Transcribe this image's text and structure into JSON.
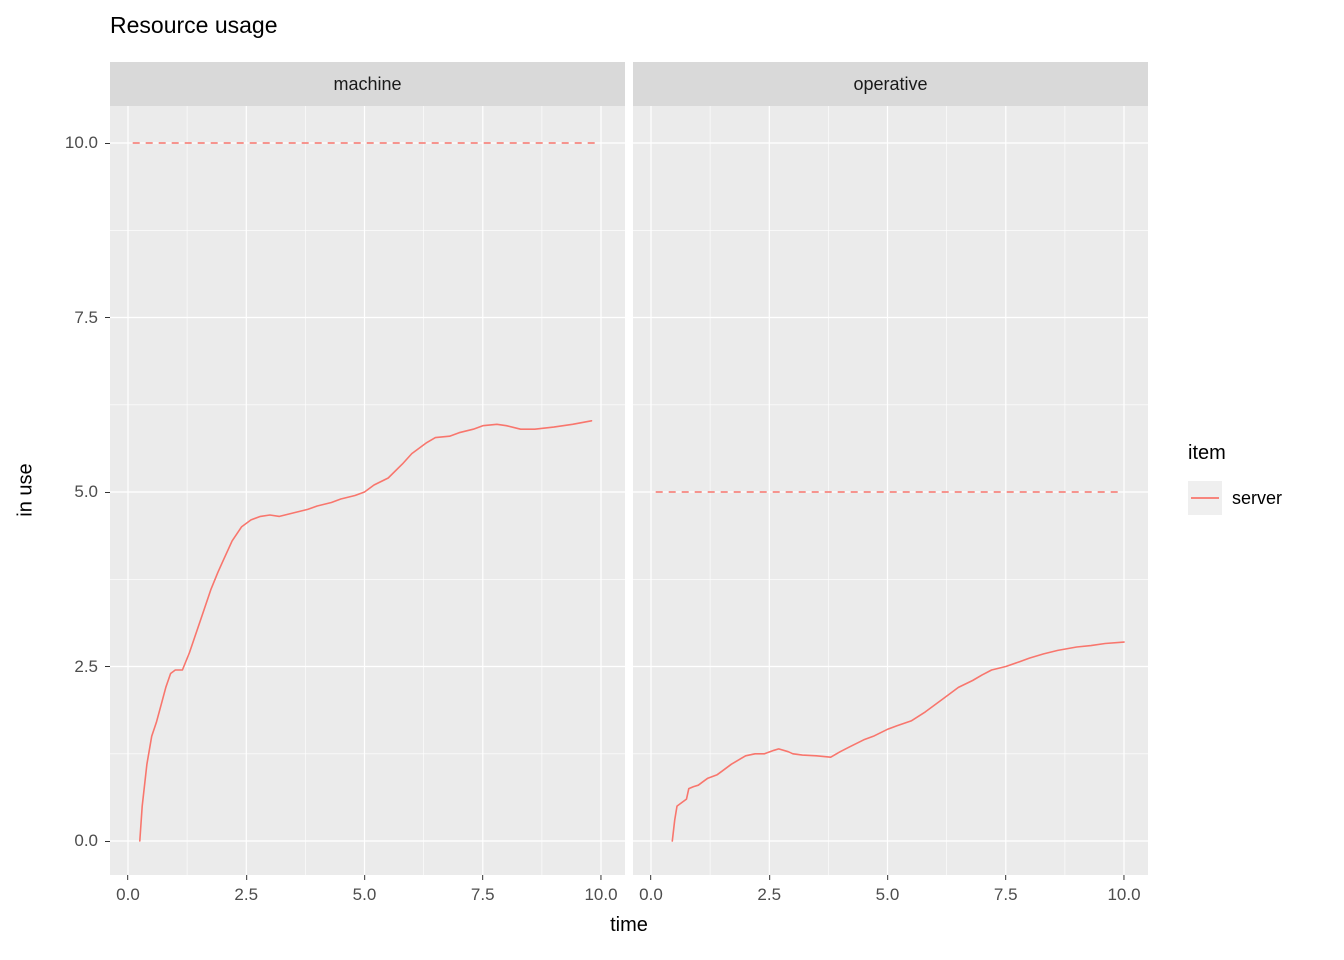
{
  "chart_data": {
    "type": "line",
    "title": "Resource usage",
    "xlabel": "time",
    "ylabel": "in use",
    "xlim": [
      0,
      10
    ],
    "ylim": [
      0,
      10
    ],
    "grid": true,
    "x_ticks": [
      0,
      2.5,
      5,
      7.5,
      10
    ],
    "x_tick_labels": [
      "0.0",
      "2.5",
      "5.0",
      "7.5",
      "10.0"
    ],
    "y_ticks": [
      0,
      2.5,
      5,
      7.5,
      10
    ],
    "y_tick_labels": [
      "0.0",
      "2.5",
      "5.0",
      "7.5",
      "10.0"
    ],
    "legend": {
      "title": "item",
      "position": "right",
      "entries": [
        {
          "label": "server",
          "color": "#F8766D"
        }
      ]
    },
    "colors": {
      "panel_bg": "#EBEBEB",
      "strip_bg": "#D9D9D9",
      "grid": "#FFFFFF",
      "series": "#F8766D",
      "axis_text": "#4D4D4D",
      "legend_key_bg": "#EFEFEF"
    },
    "facets": [
      {
        "label": "machine",
        "capacity_line": {
          "y": 10,
          "style": "dashed",
          "x_start": 0.1,
          "x_end": 9.9
        },
        "series": [
          {
            "name": "server",
            "x": [
              0.25,
              0.3,
              0.4,
              0.5,
              0.6,
              0.7,
              0.8,
              0.9,
              1.0,
              1.15,
              1.3,
              1.45,
              1.6,
              1.75,
              1.9,
              2.0,
              2.2,
              2.4,
              2.6,
              2.8,
              3.0,
              3.2,
              3.5,
              3.8,
              4.0,
              4.3,
              4.5,
              4.8,
              5.0,
              5.2,
              5.5,
              5.8,
              6.0,
              6.3,
              6.5,
              6.8,
              7.0,
              7.3,
              7.5,
              7.8,
              8.0,
              8.3,
              8.6,
              9.0,
              9.4,
              9.8
            ],
            "y": [
              0,
              0.5,
              1.1,
              1.5,
              1.7,
              1.95,
              2.2,
              2.4,
              2.45,
              2.45,
              2.7,
              3.0,
              3.3,
              3.6,
              3.85,
              4.0,
              4.3,
              4.5,
              4.6,
              4.65,
              4.67,
              4.65,
              4.7,
              4.75,
              4.8,
              4.85,
              4.9,
              4.95,
              5.0,
              5.1,
              5.2,
              5.4,
              5.55,
              5.7,
              5.78,
              5.8,
              5.85,
              5.9,
              5.95,
              5.97,
              5.95,
              5.9,
              5.9,
              5.93,
              5.97,
              6.02
            ]
          }
        ]
      },
      {
        "label": "operative",
        "capacity_line": {
          "y": 5,
          "style": "dashed",
          "x_start": 0.1,
          "x_end": 9.9
        },
        "series": [
          {
            "name": "server",
            "x": [
              0.45,
              0.5,
              0.55,
              0.65,
              0.75,
              0.8,
              0.9,
              1.0,
              1.1,
              1.2,
              1.4,
              1.5,
              1.7,
              1.9,
              2.0,
              2.2,
              2.4,
              2.6,
              2.7,
              2.9,
              3.0,
              3.2,
              3.5,
              3.8,
              4.0,
              4.2,
              4.5,
              4.7,
              5.0,
              5.2,
              5.5,
              5.8,
              6.0,
              6.2,
              6.5,
              6.8,
              7.0,
              7.2,
              7.5,
              7.8,
              8.0,
              8.3,
              8.6,
              9.0,
              9.3,
              9.6,
              10.0
            ],
            "y": [
              0,
              0.3,
              0.5,
              0.55,
              0.6,
              0.75,
              0.78,
              0.8,
              0.85,
              0.9,
              0.95,
              1.0,
              1.1,
              1.18,
              1.22,
              1.25,
              1.25,
              1.3,
              1.32,
              1.28,
              1.25,
              1.23,
              1.22,
              1.2,
              1.28,
              1.35,
              1.45,
              1.5,
              1.6,
              1.65,
              1.72,
              1.85,
              1.95,
              2.05,
              2.2,
              2.3,
              2.38,
              2.45,
              2.5,
              2.57,
              2.62,
              2.68,
              2.73,
              2.78,
              2.8,
              2.83,
              2.85
            ]
          }
        ]
      }
    ]
  }
}
